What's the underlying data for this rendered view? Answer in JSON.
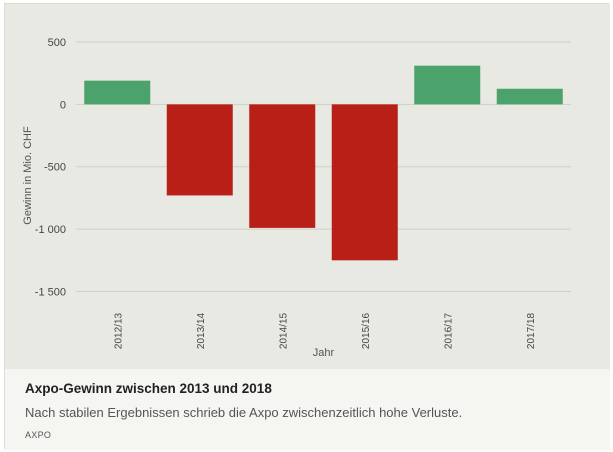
{
  "chart_data": {
    "type": "bar",
    "categories": [
      "2012/13",
      "2013/14",
      "2014/15",
      "2015/16",
      "2016/17",
      "2017/18"
    ],
    "values": [
      190,
      -730,
      -990,
      -1250,
      310,
      125
    ],
    "title": "Axpo-Gewinn zwischen 2013 und 2018",
    "subtitle": "Nach stabilen Ergebnissen schrieb die Axpo zwischenzeitlich hohe Verluste.",
    "source": "AXPO",
    "xlabel": "Jahr",
    "ylabel": "Gewinn in Mio. CHF",
    "ylim": [
      -1560,
      580
    ],
    "yticks": [
      500,
      0,
      -500,
      -1000,
      -1500
    ],
    "ytick_labels": [
      "500",
      "0",
      "-500",
      "-1 000",
      "-1 500"
    ],
    "grid": true,
    "colors": {
      "positive": "#4ba26a",
      "negative": "#b81f16",
      "grid": "#cfcfc8"
    }
  }
}
